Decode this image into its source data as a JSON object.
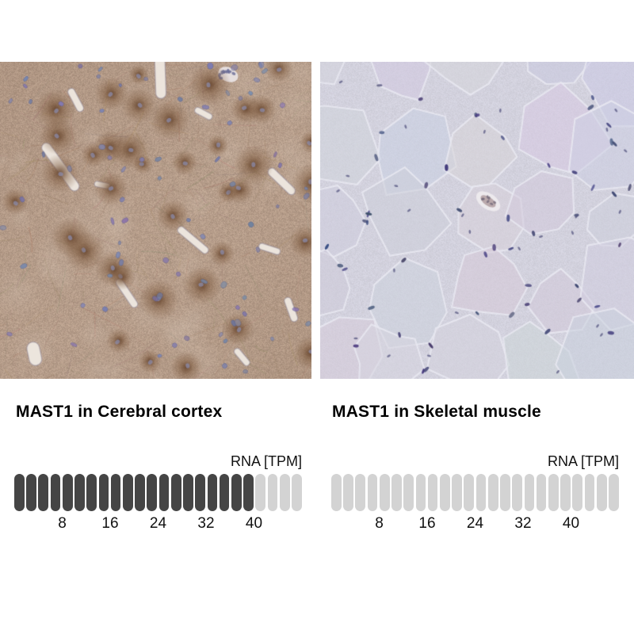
{
  "chart_data": [
    {
      "type": "bar",
      "title": "MAST1 in Cerebral cortex",
      "unit_label": "RNA [TPM]",
      "tick_labels": [
        "8",
        "16",
        "24",
        "32",
        "40"
      ],
      "tpm_per_segment": 2,
      "segments_total": 24,
      "segments_filled": 20,
      "approx_value_tpm": 40,
      "axis_max_tpm": 48,
      "filled_color": "#454545",
      "empty_color": "#d3d3d3"
    },
    {
      "type": "bar",
      "title": "MAST1 in Skeletal muscle",
      "unit_label": "RNA [TPM]",
      "tick_labels": [
        "8",
        "16",
        "24",
        "32",
        "40"
      ],
      "tpm_per_segment": 2,
      "segments_total": 24,
      "segments_filled": 0,
      "approx_value_tpm": 0,
      "axis_max_tpm": 48,
      "filled_color": "#454545",
      "empty_color": "#d3d3d3"
    }
  ],
  "images": [
    {
      "name": "ihc-micrograph-cerebral-cortex",
      "palette": {
        "background": "#b59c89",
        "stain_brown": "#6e4b32",
        "nucleus_blue": "#8a8fb5",
        "vessel_white": "#efe9e2"
      }
    },
    {
      "name": "ihc-micrograph-skeletal-muscle",
      "palette": {
        "background": "#d3d2de",
        "fiber_border": "#f0f0f6",
        "nucleus_blue": "#4c4c78",
        "vessel_gray": "#b09ea0"
      }
    }
  ]
}
